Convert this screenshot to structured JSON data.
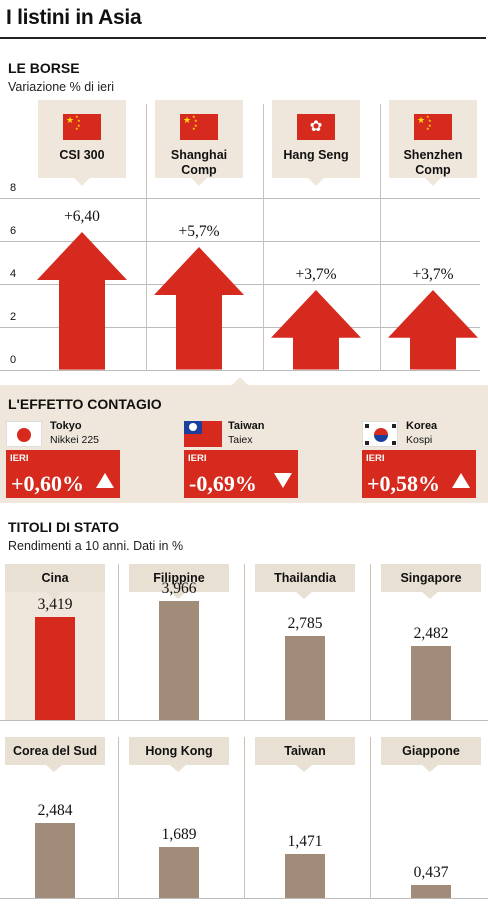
{
  "title": "I listini in Asia",
  "borse": {
    "title": "LE BORSE",
    "subtitle": "Variazione % di ieri",
    "columns": [
      {
        "label": "CSI 300",
        "value_label": "+6,40",
        "flag": "china-flag-icon"
      },
      {
        "label": "Shanghai Comp",
        "value_label": "+5,7%",
        "flag": "china-flag-icon"
      },
      {
        "label": "Hang Seng",
        "value_label": "+3,7%",
        "flag": "hong-kong-flag-icon"
      },
      {
        "label": "Shenzhen Comp",
        "value_label": "+3,7%",
        "flag": "china-flag-icon"
      }
    ]
  },
  "contagio": {
    "title": "L'EFFETTO CONTAGIO",
    "items": [
      {
        "city": "Tokyo",
        "index": "Nikkei 225",
        "tag": "IERI",
        "value": "+0,60%",
        "direction": "up",
        "flag": "japan-flag-icon"
      },
      {
        "city": "Taiwan",
        "index": "Taiex",
        "tag": "IERI",
        "value": "-0,69%",
        "direction": "down",
        "flag": "taiwan-flag-icon"
      },
      {
        "city": "Korea",
        "index": "Kospi",
        "tag": "IERI",
        "value": "+0,58%",
        "direction": "up",
        "flag": "korea-flag-icon"
      }
    ]
  },
  "titoli": {
    "title": "TITOLI DI STATO",
    "subtitle": "Rendimenti a 10 anni. Dati in %",
    "row1": [
      {
        "label": "Cina",
        "value": "3,419"
      },
      {
        "label": "Filippine",
        "value": "3,966"
      },
      {
        "label": "Thailandia",
        "value": "2,785"
      },
      {
        "label": "Singapore",
        "value": "2,482"
      }
    ],
    "row2": [
      {
        "label": "Corea del Sud",
        "value": "2,484"
      },
      {
        "label": "Hong Kong",
        "value": "1,689"
      },
      {
        "label": "Taiwan",
        "value": "1,471"
      },
      {
        "label": "Giappone",
        "value": "0,437"
      }
    ]
  },
  "colors": {
    "accent": "#d62a1e",
    "bar": "#a08c79",
    "beige": "#efe7dc"
  },
  "chart_data": [
    {
      "type": "bar",
      "title": "LE BORSE",
      "subtitle": "Variazione % di ieri",
      "categories": [
        "CSI 300",
        "Shanghai Comp",
        "Hang Seng",
        "Shenzhen Comp"
      ],
      "values": [
        6.4,
        5.7,
        3.7,
        3.7
      ],
      "ylim": [
        0,
        8
      ],
      "yticks": [
        "0",
        "2",
        "4",
        "6",
        "8"
      ],
      "grid": true
    },
    {
      "type": "bar",
      "title": "TITOLI DI STATO",
      "subtitle": "Rendimenti a 10 anni. Dati in %",
      "categories": [
        "Cina",
        "Filippine",
        "Thailandia",
        "Singapore",
        "Corea del Sud",
        "Hong Kong",
        "Taiwan",
        "Giappone"
      ],
      "values": [
        3.419,
        3.966,
        2.785,
        2.482,
        2.484,
        1.689,
        1.471,
        0.437
      ],
      "ylim": [
        0,
        4.5
      ]
    }
  ]
}
